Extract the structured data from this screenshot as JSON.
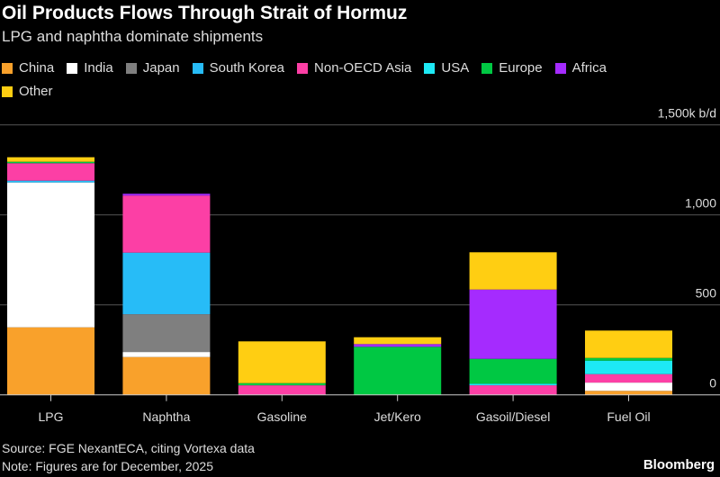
{
  "title": "Oil Products Flows Through Strait of Hormuz",
  "subtitle": "LPG and naphtha dominate shipments",
  "source": "Source: FGE NexantECA, citing Vortexa data",
  "note": "Note: Figures are for December, 2025",
  "brand": "Bloomberg",
  "chart_data": {
    "type": "bar",
    "stacked": true,
    "categories": [
      "LPG",
      "Naphtha",
      "Gasoline",
      "Jet/Kero",
      "Gasoil/Diesel",
      "Fuel Oil"
    ],
    "series": [
      {
        "name": "China",
        "color": "#f9a12b",
        "values": [
          375,
          210,
          0,
          0,
          0,
          22
        ]
      },
      {
        "name": "India",
        "color": "#ffffff",
        "values": [
          805,
          28,
          0,
          0,
          0,
          46
        ]
      },
      {
        "name": "Japan",
        "color": "#7f7f7f",
        "values": [
          0,
          210,
          0,
          0,
          0,
          0
        ]
      },
      {
        "name": "South Korea",
        "color": "#27bcf7",
        "values": [
          10,
          342,
          0,
          0,
          0,
          0
        ]
      },
      {
        "name": "Non-OECD Asia",
        "color": "#fc3fa5",
        "values": [
          97,
          317,
          53,
          0,
          53,
          47
        ]
      },
      {
        "name": "USA",
        "color": "#1de9f5",
        "values": [
          0,
          0,
          0,
          0,
          9,
          75
        ]
      },
      {
        "name": "Europe",
        "color": "#00c843",
        "values": [
          8,
          0,
          12,
          267,
          138,
          15
        ]
      },
      {
        "name": "Africa",
        "color": "#a52bfe",
        "values": [
          0,
          10,
          0,
          15,
          385,
          0
        ]
      },
      {
        "name": "Other",
        "color": "#ffce12",
        "values": [
          25,
          0,
          232,
          38,
          207,
          152
        ]
      }
    ],
    "yticks": [
      {
        "value": 0,
        "label": "0"
      },
      {
        "value": 500,
        "label": "500"
      },
      {
        "value": 1000,
        "label": "1,000"
      },
      {
        "value": 1500,
        "label": "1,500k b/d"
      }
    ],
    "ylim": [
      0,
      1500
    ],
    "grid": true,
    "legend_position": "top-left"
  }
}
